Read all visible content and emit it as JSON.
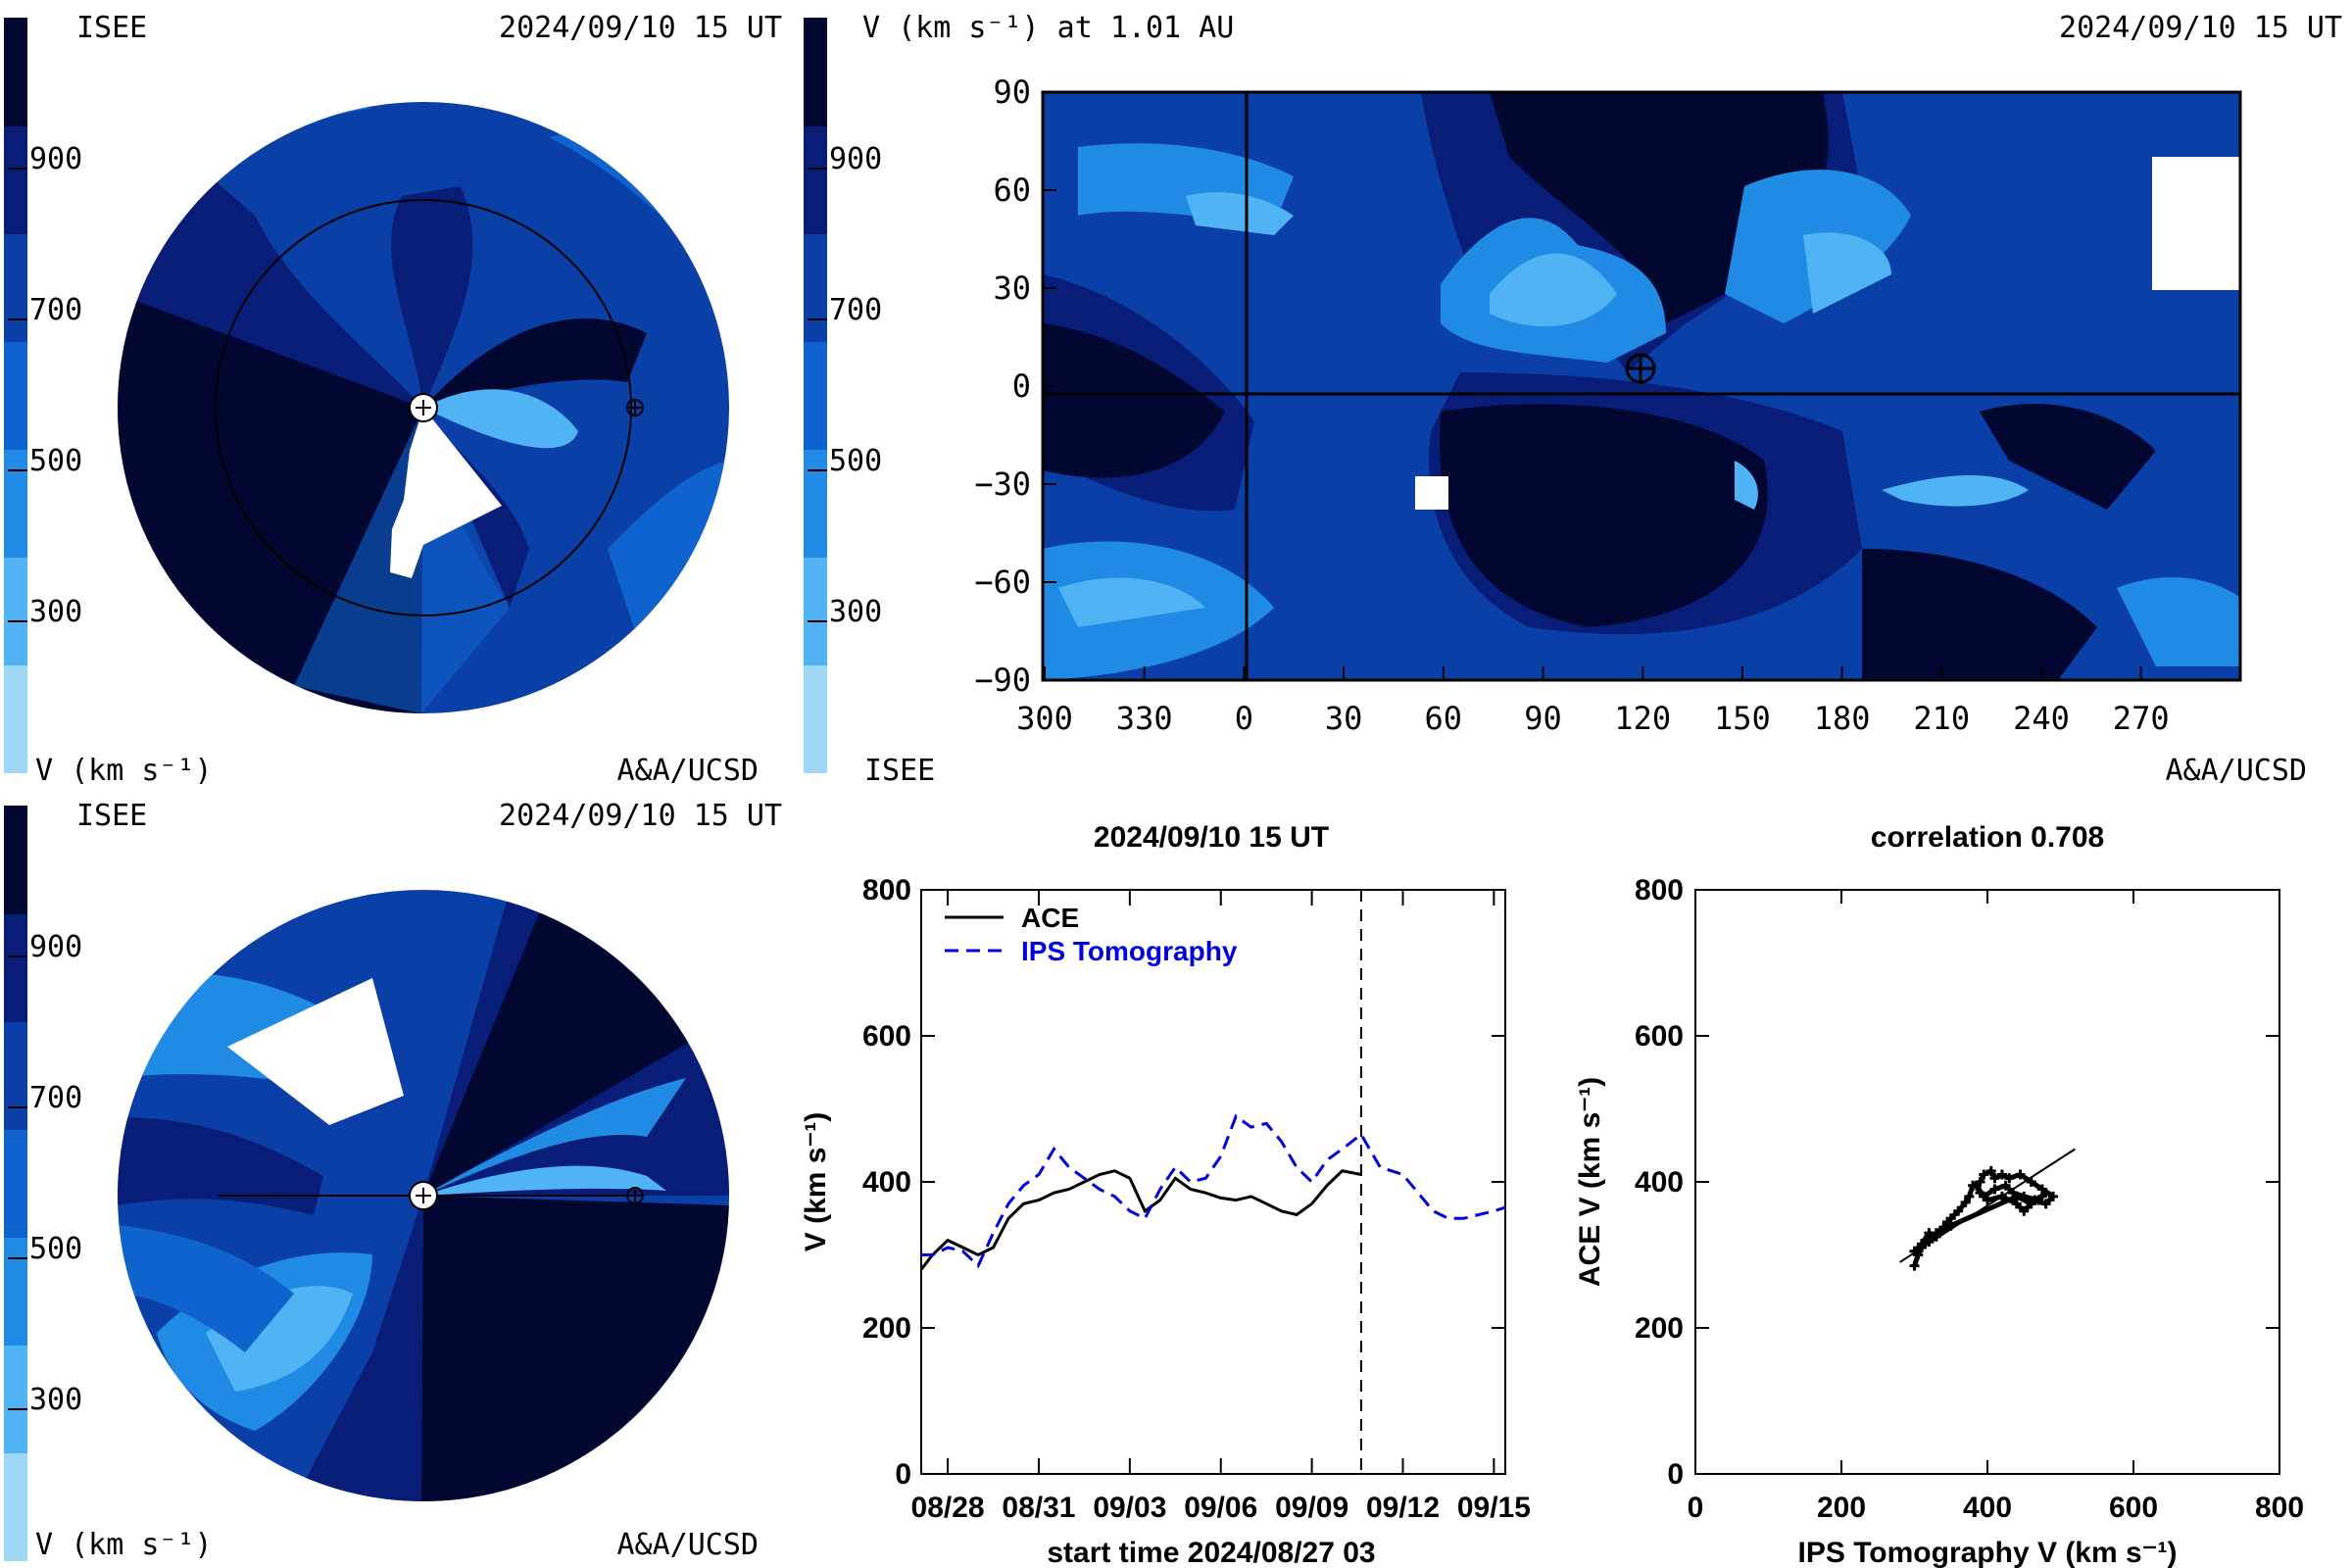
{
  "colorscale": {
    "colors": [
      "#9ed6f6",
      "#4fb3f4",
      "#1f8be4",
      "#0f63cf",
      "#0b3fa8",
      "#071d78",
      "#020731"
    ],
    "bar_ticks": [
      "900",
      "700",
      "500",
      "300"
    ],
    "bar_tick_values": [
      900,
      700,
      500,
      300
    ]
  },
  "panel_top_left": {
    "label_isee": "ISEE",
    "timestamp": "2024/09/10 15 UT",
    "units": "V (km s⁻¹)",
    "credit": "A&A/UCSD"
  },
  "panel_top_right": {
    "title": "V (km s⁻¹) at 1.01 AU",
    "timestamp": "2024/09/10 15 UT",
    "label_isee": "ISEE",
    "credit": "A&A/UCSD",
    "x_ticks": [
      "300",
      "330",
      "0",
      "30",
      "60",
      "90",
      "120",
      "150",
      "180",
      "210",
      "240",
      "270"
    ],
    "y_ticks": [
      "90",
      "60",
      "30",
      "0",
      "−30",
      "−60",
      "−90"
    ],
    "y_tick_values": [
      90,
      60,
      30,
      0,
      -30,
      -60,
      -90
    ]
  },
  "panel_bottom_left": {
    "label_isee": "ISEE",
    "timestamp": "2024/09/10 15 UT",
    "units": "V (km s⁻¹)",
    "credit": "A&A/UCSD"
  },
  "chart_data": [
    {
      "type": "line",
      "title": "2024/09/10 15 UT",
      "xlabel": "start time 2024/08/27 03",
      "ylabel": "V (km s⁻¹)",
      "ylim": [
        0,
        800
      ],
      "xlim_days_since_start": [
        0,
        19.25
      ],
      "x_tick_labels": [
        "08/28",
        "08/31",
        "09/03",
        "09/06",
        "09/09",
        "09/12",
        "09/15"
      ],
      "y_tick_labels": [
        "0",
        "200",
        "400",
        "600",
        "800"
      ],
      "vline_label": "2024/09/10 15 UT",
      "legend_position": "top-left",
      "series": [
        {
          "name": "ACE",
          "style": "solid",
          "color": "#000000",
          "x": [
            "08/27 03",
            "08/27 12",
            "08/28 00",
            "08/28 12",
            "08/29 00",
            "08/29 12",
            "08/30 00",
            "08/30 12",
            "08/31 00",
            "08/31 12",
            "09/01 00",
            "09/01 12",
            "09/02 00",
            "09/02 12",
            "09/03 00",
            "09/03 12",
            "09/04 00",
            "09/04 12",
            "09/05 00",
            "09/05 12",
            "09/06 00",
            "09/06 12",
            "09/07 00",
            "09/07 12",
            "09/08 00",
            "09/08 12",
            "09/09 00",
            "09/09 12",
            "09/10 00",
            "09/10 15"
          ],
          "values": [
            280,
            300,
            320,
            310,
            300,
            310,
            350,
            370,
            375,
            385,
            390,
            400,
            410,
            415,
            405,
            360,
            375,
            405,
            390,
            385,
            378,
            375,
            380,
            370,
            360,
            355,
            370,
            395,
            415,
            410
          ]
        },
        {
          "name": "IPS Tomography",
          "style": "dashed",
          "color": "#0000dd",
          "x": [
            "08/27 03",
            "08/27 12",
            "08/28 00",
            "08/28 12",
            "08/29 00",
            "08/29 12",
            "08/30 00",
            "08/30 12",
            "08/31 00",
            "08/31 12",
            "09/01 00",
            "09/01 12",
            "09/02 00",
            "09/02 12",
            "09/03 00",
            "09/03 12",
            "09/04 00",
            "09/04 12",
            "09/05 00",
            "09/05 12",
            "09/06 00",
            "09/06 12",
            "09/07 00",
            "09/07 12",
            "09/08 00",
            "09/08 12",
            "09/09 00",
            "09/09 12",
            "09/10 00",
            "09/10 15",
            "09/11 06",
            "09/12 00",
            "09/12 12",
            "09/13 00",
            "09/13 12",
            "09/14 00",
            "09/14 12",
            "09/15 00",
            "09/15 09"
          ],
          "values": [
            300,
            300,
            310,
            305,
            285,
            330,
            370,
            395,
            410,
            445,
            420,
            405,
            390,
            380,
            360,
            350,
            390,
            420,
            400,
            405,
            435,
            490,
            475,
            480,
            455,
            420,
            400,
            430,
            445,
            465,
            420,
            410,
            385,
            360,
            350,
            350,
            355,
            360,
            365
          ]
        }
      ]
    },
    {
      "type": "scatter",
      "title": "correlation 0.708",
      "xlabel": "IPS Tomography V (km s⁻¹)",
      "ylabel": "ACE V (km s⁻¹)",
      "xlim": [
        0,
        800
      ],
      "ylim": [
        0,
        800
      ],
      "x_tick_labels": [
        "0",
        "200",
        "400",
        "600",
        "800"
      ],
      "y_tick_labels": [
        "0",
        "200",
        "400",
        "600",
        "800"
      ],
      "correlation": 0.708,
      "points": [
        [
          300,
          285
        ],
        [
          305,
          300
        ],
        [
          310,
          310
        ],
        [
          300,
          305
        ],
        [
          315,
          320
        ],
        [
          320,
          318
        ],
        [
          330,
          330
        ],
        [
          340,
          338
        ],
        [
          345,
          345
        ],
        [
          350,
          350
        ],
        [
          360,
          360
        ],
        [
          370,
          372
        ],
        [
          375,
          380
        ],
        [
          380,
          395
        ],
        [
          390,
          400
        ],
        [
          395,
          410
        ],
        [
          405,
          415
        ],
        [
          410,
          405
        ],
        [
          420,
          410
        ],
        [
          430,
          405
        ],
        [
          445,
          410
        ],
        [
          460,
          400
        ],
        [
          475,
          390
        ],
        [
          490,
          380
        ],
        [
          480,
          370
        ],
        [
          465,
          375
        ],
        [
          450,
          360
        ],
        [
          440,
          370
        ],
        [
          420,
          380
        ],
        [
          400,
          375
        ],
        [
          390,
          385
        ],
        [
          385,
          395
        ],
        [
          395,
          380
        ],
        [
          410,
          390
        ],
        [
          425,
          395
        ],
        [
          435,
          385
        ],
        [
          450,
          380
        ],
        [
          470,
          375
        ],
        [
          480,
          385
        ],
        [
          460,
          370
        ],
        [
          440,
          380
        ],
        [
          350,
          340
        ],
        [
          330,
          325
        ],
        [
          320,
          330
        ],
        [
          310,
          315
        ]
      ],
      "fit_line": [
        [
          280,
          290
        ],
        [
          520,
          445
        ]
      ]
    }
  ]
}
